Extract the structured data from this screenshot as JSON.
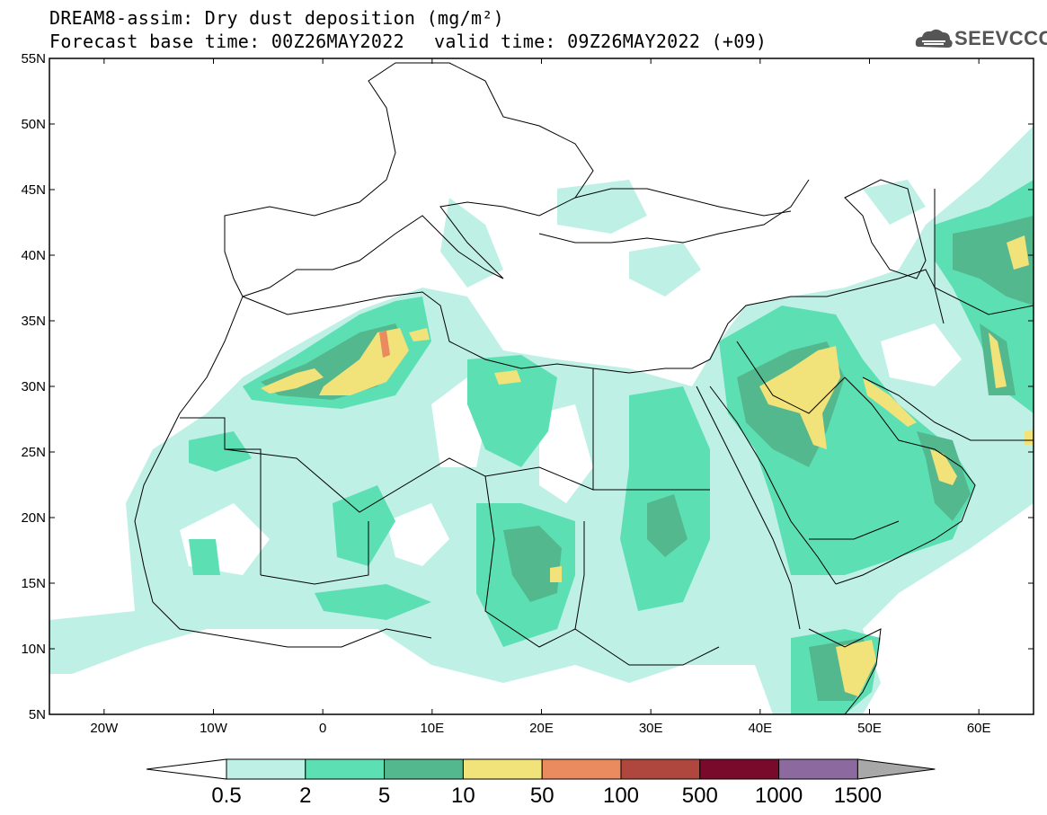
{
  "header": {
    "line1": "DREAM8-assim: Dry dust deposition (mg/m²)",
    "line2": "Forecast base time: 00Z26MAY2022",
    "line3": "valid time: 09Z26MAY2022 (+09)",
    "logo_text": "SEEVCCC"
  },
  "map": {
    "lon_range": [
      -25,
      65
    ],
    "lat_range": [
      5,
      55
    ],
    "lat_labels": [
      "55N",
      "50N",
      "45N",
      "40N",
      "35N",
      "30N",
      "25N",
      "20N",
      "15N",
      "10N",
      "5N"
    ],
    "lon_labels": [
      "20W",
      "10W",
      "0",
      "10E",
      "20E",
      "30E",
      "40E",
      "50E",
      "60E"
    ]
  },
  "colorbar": {
    "labels": [
      "0.5",
      "2",
      "5",
      "10",
      "50",
      "100",
      "500",
      "1000",
      "1500"
    ],
    "colors": [
      "#bff0e6",
      "#5ddfb4",
      "#54b88e",
      "#f2e27a",
      "#e98a5f",
      "#b0473e",
      "#7a0a2c",
      "#8c6aa0",
      "#a8a8a8"
    ]
  }
}
